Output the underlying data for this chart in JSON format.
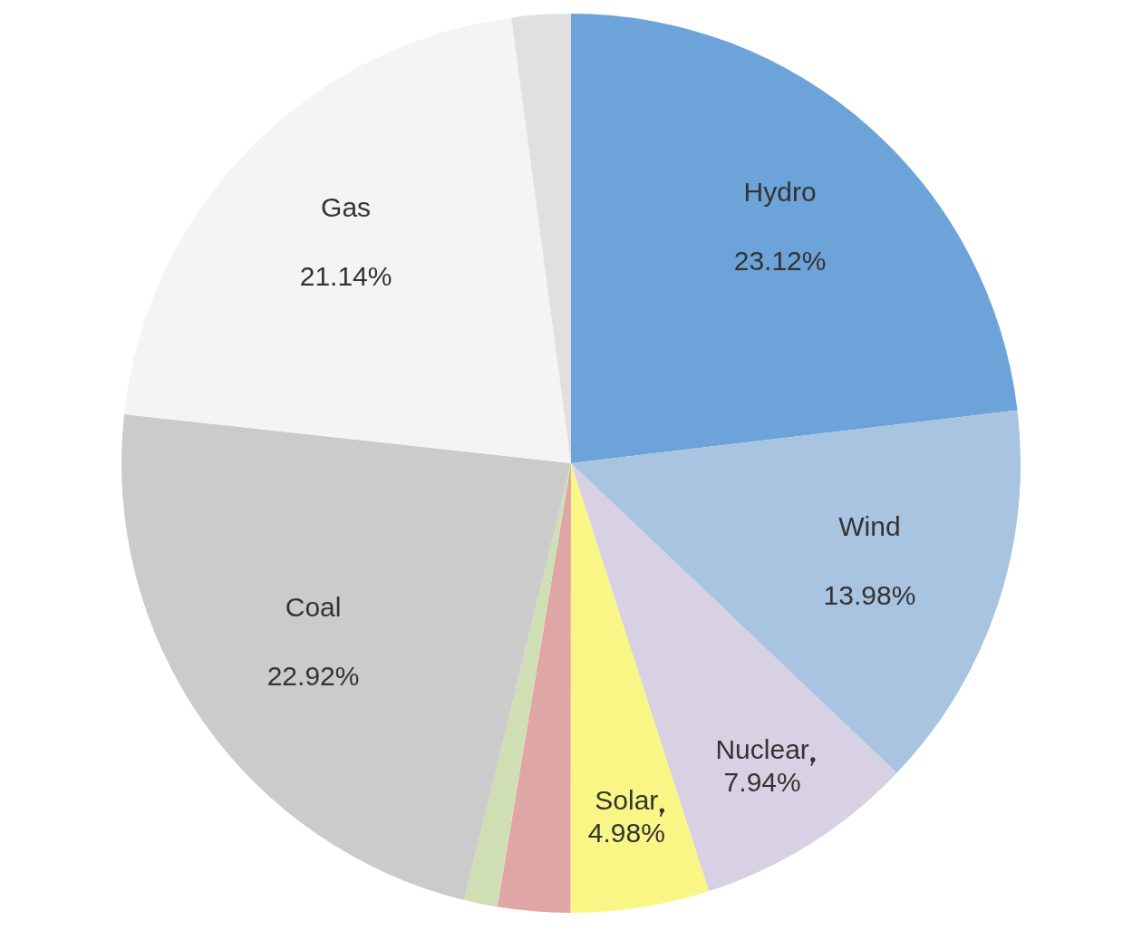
{
  "chart_data": {
    "type": "pie",
    "categories": [
      "Hydro",
      "Wind",
      "Nuclear",
      "Solar",
      null,
      null,
      "Coal",
      "Gas",
      null
    ],
    "values": [
      23.12,
      13.98,
      7.94,
      4.98,
      2.6,
      1.2,
      22.92,
      21.14,
      2.12
    ],
    "colors": [
      "#6ca3d8",
      "#a9c4e0",
      "#d8d0e3",
      "#f9f685",
      "#e0a6a6",
      "#d0deb4",
      "#cbcbcb",
      "#f4f4f4",
      "#e0e0e0"
    ],
    "value_labels": [
      "23.12%",
      "13.98%",
      "7.94%",
      "4.98%",
      null,
      null,
      "22.92%",
      "21.14%",
      null
    ],
    "legend": false
  }
}
